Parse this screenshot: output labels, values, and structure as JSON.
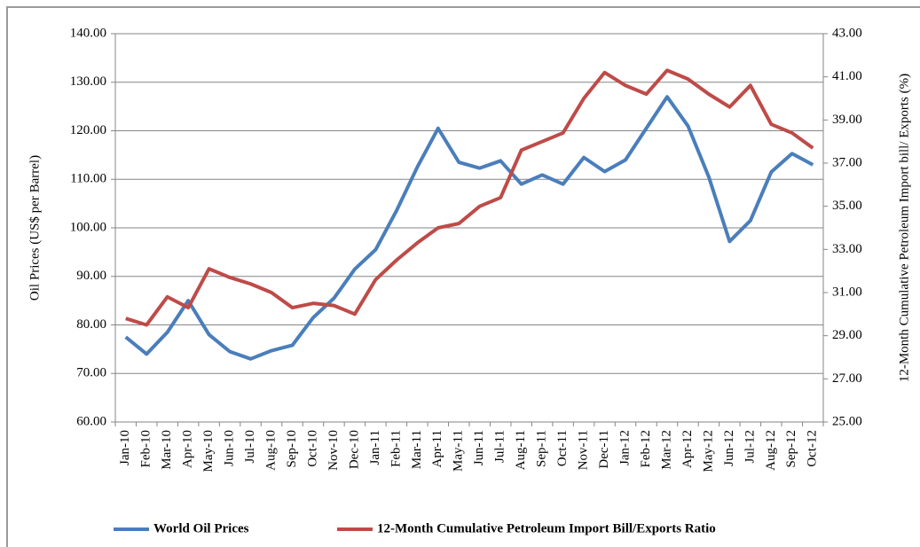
{
  "chart_data": {
    "type": "line",
    "categories": [
      "Jan-10",
      "Feb-10",
      "Mar-10",
      "Apr-10",
      "May-10",
      "Jun-10",
      "Jul-10",
      "Aug-10",
      "Sep-10",
      "Oct-10",
      "Nov-10",
      "Dec-10",
      "Jan-11",
      "Feb-11",
      "Mar-11",
      "Apr-11",
      "May-11",
      "Jun-11",
      "Jul-11",
      "Aug-11",
      "Sep-11",
      "Oct-11",
      "Nov-11",
      "Dec-11",
      "Jan-12",
      "Feb-12",
      "Mar-12",
      "Apr-12",
      "May-12",
      "Jun-12",
      "Jul-12",
      "Aug-12",
      "Sep-12",
      "Oct-12"
    ],
    "series": [
      {
        "name": "World Oil Prices",
        "color": "#4a7ebb",
        "values": [
          77.5,
          74,
          78.5,
          85,
          78,
          74.5,
          73,
          74.7,
          75.8,
          81.5,
          85.5,
          91.5,
          95.5,
          103.5,
          112.5,
          120.5,
          113.5,
          112.3,
          113.8,
          109,
          110.9,
          109,
          114.5,
          111.6,
          114,
          120.5,
          127,
          121,
          110.5,
          97.2,
          101.5,
          111.5,
          115.3,
          113
        ]
      },
      {
        "name": "12-Month Cumulative Petroleum Import Bill/Exports Ratio",
        "color": "#be4b48",
        "axis": "y2",
        "values": [
          29.8,
          29.5,
          30.8,
          30.3,
          32.1,
          31.7,
          31.4,
          31.0,
          30.3,
          30.5,
          30.4,
          30.0,
          31.6,
          32.5,
          33.3,
          34.0,
          34.2,
          35.0,
          35.4,
          37.6,
          38.0,
          38.4,
          40.0,
          41.2,
          40.6,
          40.2,
          41.3,
          40.9,
          40.2,
          39.6,
          40.6,
          38.8,
          38.4,
          37.7
        ]
      }
    ],
    "y_label": "Oil Prices (US$ per Barrel)",
    "y2_label": "12-Month Cumulative Petroleum Import bill/ Exports (%)",
    "ylim": [
      60,
      140
    ],
    "yticks": [
      {
        "value": 60,
        "label": "60.00"
      },
      {
        "value": 70,
        "label": "70.00"
      },
      {
        "value": 80,
        "label": "80.00"
      },
      {
        "value": 90,
        "label": "90.00"
      },
      {
        "value": 100,
        "label": "100.00"
      },
      {
        "value": 110,
        "label": "110.00"
      },
      {
        "value": 120,
        "label": "120.00"
      },
      {
        "value": 130,
        "label": "130.00"
      },
      {
        "value": 140,
        "label": "140.00"
      }
    ],
    "y2lim": [
      25,
      43
    ],
    "y2ticks": [
      {
        "value": 25,
        "label": "25.00"
      },
      {
        "value": 27,
        "label": "27.00"
      },
      {
        "value": 29,
        "label": "29.00"
      },
      {
        "value": 31,
        "label": "31.00"
      },
      {
        "value": 33,
        "label": "33.00"
      },
      {
        "value": 35,
        "label": "35.00"
      },
      {
        "value": 37,
        "label": "37.00"
      },
      {
        "value": 39,
        "label": "39.00"
      },
      {
        "value": 41,
        "label": "41.00"
      },
      {
        "value": 43,
        "label": "43.00"
      }
    ],
    "grid": true,
    "legend": "bottom"
  }
}
